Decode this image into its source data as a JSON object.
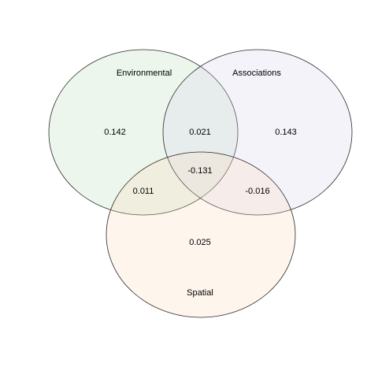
{
  "sets": [
    {
      "key": "environmental",
      "label": "Environmental",
      "color": "#b5dcb4"
    },
    {
      "key": "associations",
      "label": "Associations",
      "color": "#d8d0ea"
    },
    {
      "key": "spatial",
      "label": "Spatial",
      "color": "#fcd8b6"
    }
  ],
  "regions": {
    "environmental_only": "0.142",
    "associations_only": "0.143",
    "spatial_only": "0.025",
    "environmental_associations": "0.021",
    "environmental_spatial": "0.011",
    "associations_spatial": "-0.016",
    "all_three": "-0.131"
  }
}
